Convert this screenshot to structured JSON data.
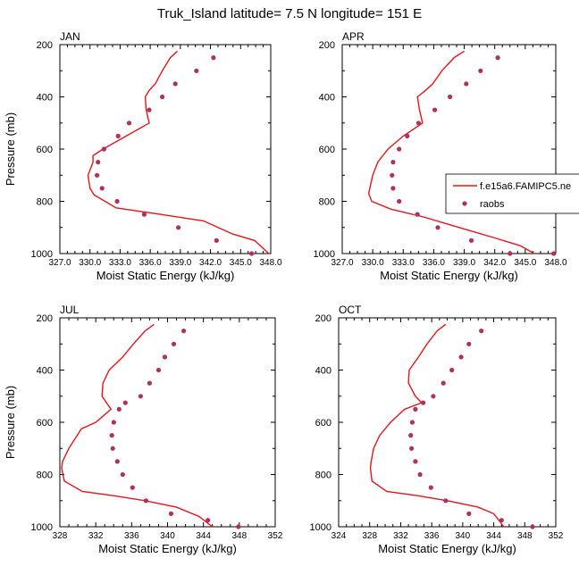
{
  "title": "Truk_Island  latitude= 7.5 N longitude= 151 E",
  "colors": {
    "model": "#e8141c",
    "raobs": "#b0305e",
    "axis": "#000000"
  },
  "legend": {
    "placement": "right, in APR panel",
    "entries": [
      {
        "label": "f.e15a6.FAMIPC5.ne",
        "style": "line",
        "color": "#e8141c"
      },
      {
        "label": "raobs",
        "style": "marker",
        "color": "#b0305e"
      }
    ]
  },
  "chart_data": [
    {
      "type": "line",
      "panel_label": "JAN",
      "xlabel": "Moist Static Energy (kJ/kg)",
      "ylabel": "Pressure (mb)",
      "xlim": [
        327,
        348
      ],
      "xticks": [
        "327.0",
        "330.0",
        "333.0",
        "336.0",
        "339.0",
        "342.0",
        "345.0",
        "348.0"
      ],
      "ylim": [
        200,
        1000
      ],
      "y_reversed": true,
      "yticks": [
        200,
        400,
        600,
        800,
        1000
      ],
      "series": [
        {
          "name": "f.e15a6.FAMIPC5.ne",
          "kind": "line",
          "x": [
            338.7,
            338.0,
            337.2,
            336.5,
            335.9,
            335.5,
            335.6,
            335.9,
            333.6,
            331.3,
            330.3,
            330.3,
            329.8,
            330.0,
            330.4,
            332.6,
            337.0,
            341.3,
            344.2,
            346.4,
            347.8
          ],
          "y": [
            225,
            250,
            300,
            350,
            375,
            400,
            450,
            500,
            550,
            600,
            625,
            650,
            700,
            750,
            775,
            825,
            850,
            875,
            925,
            950,
            1000
          ]
        },
        {
          "name": "raobs",
          "kind": "scatter",
          "x": [
            342.3,
            340.6,
            338.5,
            337.2,
            335.9,
            333.9,
            332.8,
            331.4,
            330.8,
            330.7,
            331.2,
            332.7,
            335.4,
            338.8,
            342.6,
            346.1
          ],
          "y": [
            250,
            300,
            350,
            400,
            450,
            500,
            550,
            600,
            650,
            700,
            750,
            800,
            850,
            900,
            950,
            1000
          ]
        }
      ]
    },
    {
      "type": "line",
      "panel_label": "APR",
      "xlabel": "Moist Static Energy (kJ/kg)",
      "ylabel": "",
      "xlim": [
        327,
        348
      ],
      "xticks": [
        "327.0",
        "330.0",
        "333.0",
        "336.0",
        "339.0",
        "342.0",
        "345.0",
        "348.0"
      ],
      "ylim": [
        200,
        1000
      ],
      "y_reversed": true,
      "yticks": [
        200,
        400,
        600,
        800,
        1000
      ],
      "series": [
        {
          "name": "f.e15a6.FAMIPC5.ne",
          "kind": "line",
          "x": [
            339.0,
            338.0,
            336.8,
            335.9,
            335.2,
            334.4,
            334.6,
            334.9,
            333.0,
            331.5,
            330.5,
            330.0,
            329.6,
            329.9,
            331.8,
            335.0,
            338.5,
            342.0,
            344.5,
            345.9
          ],
          "y": [
            225,
            250,
            300,
            350,
            375,
            400,
            450,
            500,
            550,
            600,
            650,
            700,
            770,
            800,
            830,
            860,
            900,
            940,
            970,
            1000
          ]
        },
        {
          "name": "raobs",
          "kind": "scatter",
          "x": [
            342.3,
            340.6,
            339.2,
            337.6,
            336.1,
            334.5,
            333.4,
            332.6,
            332.0,
            331.9,
            332.0,
            332.6,
            334.4,
            336.4,
            339.7,
            343.5,
            347.8
          ],
          "y": [
            250,
            300,
            350,
            400,
            450,
            500,
            550,
            600,
            650,
            700,
            750,
            800,
            850,
            900,
            950,
            1000,
            1000
          ]
        }
      ]
    },
    {
      "type": "line",
      "panel_label": "JUL",
      "xlabel": "Moist Static Energy (kJ/kg)",
      "ylabel": "Pressure (mb)",
      "xlim": [
        328,
        352
      ],
      "xticks": [
        "328",
        "332",
        "336",
        "340",
        "344",
        "348",
        "352"
      ],
      "ylim": [
        200,
        1000
      ],
      "y_reversed": true,
      "yticks": [
        200,
        400,
        600,
        800,
        1000
      ],
      "series": [
        {
          "name": "f.e15a6.FAMIPC5.ne",
          "kind": "line",
          "x": [
            338.5,
            337.5,
            336.2,
            335.0,
            333.5,
            332.8,
            332.7,
            333.2,
            333.7,
            332.0,
            330.4,
            329.0,
            328.3,
            328.2,
            328.5,
            330.5,
            333.8,
            337.5,
            341.0,
            343.5,
            345.0
          ],
          "y": [
            225,
            250,
            300,
            350,
            400,
            450,
            500,
            525,
            550,
            600,
            625,
            700,
            750,
            775,
            825,
            865,
            880,
            900,
            925,
            960,
            1000
          ]
        },
        {
          "name": "raobs",
          "kind": "scatter",
          "x": [
            341.8,
            340.7,
            339.7,
            339.0,
            338.0,
            337.0,
            335.3,
            334.6,
            334.0,
            333.8,
            333.9,
            334.4,
            335.0,
            336.1,
            337.6,
            340.4,
            344.5,
            347.9
          ],
          "y": [
            250,
            300,
            350,
            400,
            450,
            500,
            525,
            550,
            600,
            650,
            700,
            750,
            800,
            850,
            900,
            950,
            975,
            1000
          ]
        }
      ]
    },
    {
      "type": "line",
      "panel_label": "OCT",
      "xlabel": "Moist Static Energy (kJ/kg)",
      "ylabel": "",
      "xlim": [
        324,
        352
      ],
      "xticks": [
        "324",
        "328",
        "332",
        "336",
        "340",
        "344",
        "348",
        "352"
      ],
      "ylim": [
        200,
        1000
      ],
      "y_reversed": true,
      "yticks": [
        200,
        400,
        600,
        800,
        1000
      ],
      "series": [
        {
          "name": "f.e15a6.FAMIPC5.ne",
          "kind": "line",
          "x": [
            337.8,
            336.7,
            335.4,
            334.3,
            333.1,
            333.0,
            333.9,
            334.7,
            332.5,
            330.7,
            329.3,
            328.5,
            328.2,
            328.1,
            328.3,
            330.2,
            334.0,
            338.0,
            342.0,
            344.0,
            345.3
          ],
          "y": [
            225,
            250,
            300,
            350,
            400,
            450,
            500,
            525,
            550,
            600,
            650,
            700,
            750,
            775,
            825,
            865,
            880,
            900,
            925,
            950,
            1000
          ]
        },
        {
          "name": "raobs",
          "kind": "scatter",
          "x": [
            342.4,
            340.8,
            339.8,
            338.6,
            337.5,
            336.2,
            334.9,
            333.9,
            333.5,
            333.3,
            333.4,
            333.9,
            334.5,
            335.9,
            337.8,
            340.8,
            345.0,
            349.0
          ],
          "y": [
            250,
            300,
            350,
            400,
            450,
            500,
            525,
            550,
            600,
            650,
            700,
            750,
            800,
            850,
            900,
            950,
            975,
            1000
          ]
        }
      ]
    }
  ]
}
